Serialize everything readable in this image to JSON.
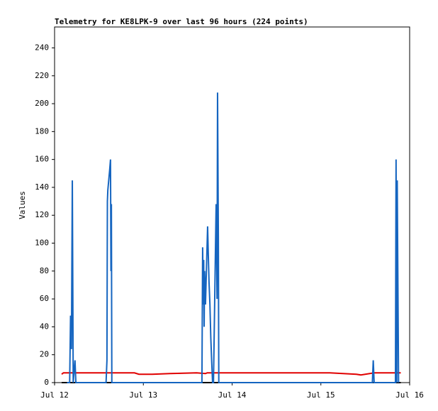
{
  "chart_data": {
    "type": "line",
    "title": "Telemetry for KE8LPK-9 over last 96 hours (224 points)",
    "y_label": "Values",
    "xlim": [
      12,
      16
    ],
    "xticks": [
      {
        "value": 12,
        "label": "Jul 12"
      },
      {
        "value": 13,
        "label": "Jul 13"
      },
      {
        "value": 14,
        "label": "Jul 14"
      },
      {
        "value": 15,
        "label": "Jul 15"
      },
      {
        "value": 16,
        "label": "Jul 16"
      }
    ],
    "ylim": [
      0,
      255
    ],
    "yticks": [
      0,
      20,
      40,
      60,
      80,
      100,
      120,
      140,
      160,
      180,
      200,
      220,
      240
    ],
    "series": [
      {
        "color": "#1565c0",
        "x": [
          12.14,
          12.17,
          12.18,
          12.19,
          12.2,
          12.21,
          12.23,
          12.24,
          12.58,
          12.59,
          12.595,
          12.6,
          12.61,
          12.62,
          12.63,
          12.635,
          12.64,
          12.645,
          13.66,
          13.668,
          13.675,
          13.68,
          13.685,
          13.69,
          13.7,
          13.724,
          13.73,
          13.74,
          13.75,
          13.76,
          13.77,
          13.78,
          13.79,
          13.82,
          13.83,
          13.836,
          13.845,
          13.85,
          15.58,
          15.59,
          15.6,
          15.84,
          15.847,
          15.855,
          15.86,
          15.875
        ],
        "values": [
          0,
          0,
          48,
          24,
          145,
          0,
          16,
          0,
          0,
          16,
          130,
          138,
          145,
          152,
          160,
          80,
          128,
          0,
          0,
          97,
          56,
          88,
          40,
          80,
          56,
          112,
          96,
          72,
          56,
          32,
          15,
          0,
          0,
          128,
          60,
          208,
          104,
          0,
          0,
          16,
          0,
          0,
          160,
          0,
          145,
          0
        ]
      },
      {
        "color": "#e00000",
        "x": [
          12.08,
          12.1,
          12.3,
          12.6,
          12.9,
          12.95,
          13.1,
          13.3,
          13.6,
          13.7,
          13.72,
          13.9,
          14.3,
          14.8,
          15.1,
          15.4,
          15.45,
          15.6,
          15.9
        ],
        "values": [
          6,
          7,
          7,
          7,
          7,
          6,
          6,
          6.5,
          7,
          6.5,
          7,
          7,
          7,
          7,
          7,
          6,
          5.5,
          7,
          7
        ]
      },
      {
        "color": "#000000",
        "x": [
          12.08,
          15.9
        ],
        "values": [
          0,
          0
        ]
      }
    ]
  }
}
